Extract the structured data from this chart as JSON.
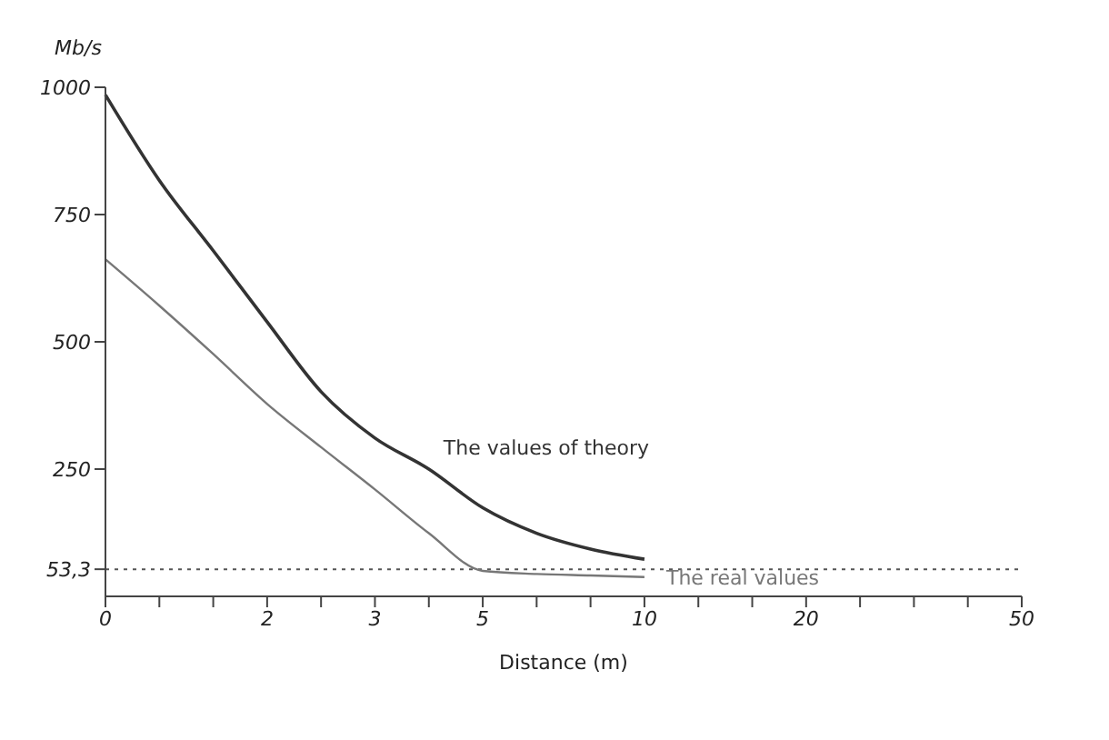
{
  "chart_data": {
    "type": "line",
    "xlabel": "Distance (m)",
    "ylabel": "Mb/s",
    "categories": [
      "0",
      null,
      null,
      "2",
      null,
      "3",
      null,
      "5",
      null,
      null,
      "10",
      null,
      null,
      "20",
      null,
      null,
      null,
      "50"
    ],
    "series": [
      {
        "name": "The values of theory",
        "color": "#333333",
        "values": [
          985,
          817,
          679,
          539,
          402,
          311,
          250,
          174,
          124,
          93,
          73,
          null,
          null,
          null,
          null,
          null,
          null,
          null
        ]
      },
      {
        "name": "The real values",
        "color": "#777777",
        "values": [
          662,
          571,
          476,
          378,
          293,
          210,
          124,
          50,
          44,
          41,
          38,
          null,
          null,
          null,
          null,
          null,
          null,
          null
        ]
      }
    ],
    "ylim": [
      0,
      1000
    ],
    "yticks": [
      {
        "value": 53.3,
        "label": "53,3"
      },
      250,
      500,
      750,
      1000
    ],
    "ref_lines": [
      {
        "axis": "y",
        "value": 53.3,
        "line_style": "dotted",
        "color": "#555555"
      }
    ],
    "grid": false,
    "legend": false,
    "marker": "none",
    "line_style": "solid"
  }
}
